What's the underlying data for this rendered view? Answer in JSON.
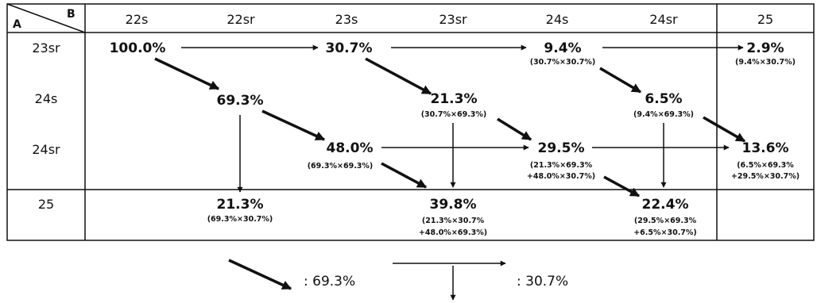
{
  "corner": {
    "row_label": "A",
    "col_label": "B"
  },
  "columns": [
    "22s",
    "22sr",
    "23s",
    "23sr",
    "24s",
    "24sr",
    "25"
  ],
  "rows": [
    "23sr",
    "24s",
    "24sr",
    "25"
  ],
  "nodes": {
    "n_100": {
      "value": "100.0%",
      "formula": ""
    },
    "n_307": {
      "value": "30.7%",
      "formula": ""
    },
    "n_94": {
      "value": "9.4%",
      "formula": "(30.7%×30.7%)"
    },
    "n_29": {
      "value": "2.9%",
      "formula": "(9.4%×30.7%)"
    },
    "n_693": {
      "value": "69.3%",
      "formula": ""
    },
    "n_213a": {
      "value": "21.3%",
      "formula": "(30.7%×69.3%)"
    },
    "n_65": {
      "value": "6.5%",
      "formula": "(9.4%×69.3%)"
    },
    "n_480": {
      "value": "48.0%",
      "formula": "(69.3%×69.3%)"
    },
    "n_295": {
      "value": "29.5%",
      "formula": "(21.3%×69.3%",
      "formula2": "+48.0%×30.7%)"
    },
    "n_136": {
      "value": "13.6%",
      "formula": "(6.5%×69.3%",
      "formula2": "+29.5%×30.7%)"
    },
    "n_213b": {
      "value": "21.3%",
      "formula": "(69.3%×30.7%)"
    },
    "n_398": {
      "value": "39.8%",
      "formula": "(21.3%×30.7%",
      "formula2": "+48.0%×69.3%)"
    },
    "n_224": {
      "value": "22.4%",
      "formula": "(29.5%×69.3%",
      "formula2": "+6.5%×30.7%)"
    }
  },
  "legend": {
    "diagonal": ": 69.3%",
    "straight": ": 30.7%"
  }
}
